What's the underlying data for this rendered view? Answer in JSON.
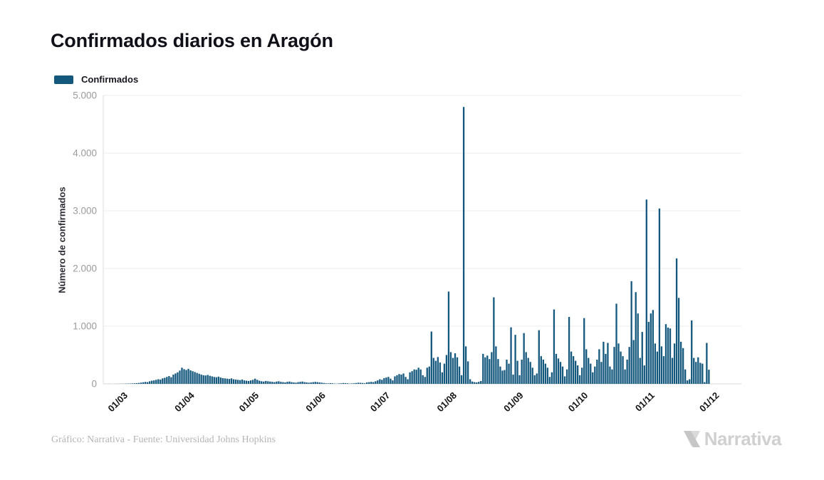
{
  "title": "Confirmados diarios en Aragón",
  "legend": {
    "label": "Confirmados",
    "swatch_color": "#14587E"
  },
  "footer": {
    "credit": "Gráfico: Narrativa - Fuente: Universidad Johns Hopkins",
    "brand": "Narrativa"
  },
  "chart_data": {
    "type": "bar",
    "title": "Confirmados diarios en Aragón",
    "series_name": "Confirmados",
    "xlabel": "",
    "ylabel": "Número de confirmados",
    "ylim": [
      0,
      5000
    ],
    "grid": true,
    "legend_position": "top-left",
    "bar_color": "#14587E",
    "y_ticks": [
      {
        "label": "0",
        "value": 0
      },
      {
        "label": "1.000",
        "value": 1000
      },
      {
        "label": "2.000",
        "value": 2000
      },
      {
        "label": "3.000",
        "value": 3000
      },
      {
        "label": "4.000",
        "value": 4000
      },
      {
        "label": "5.000",
        "value": 5000
      }
    ],
    "x_ticks": [
      {
        "label": "01/03",
        "day": 8
      },
      {
        "label": "01/04",
        "day": 39
      },
      {
        "label": "01/05",
        "day": 69
      },
      {
        "label": "01/06",
        "day": 100
      },
      {
        "label": "01/07",
        "day": 130
      },
      {
        "label": "01/08",
        "day": 161
      },
      {
        "label": "01/09",
        "day": 192
      },
      {
        "label": "01/10",
        "day": 222
      },
      {
        "label": "01/11",
        "day": 253
      },
      {
        "label": "01/12",
        "day": 283
      }
    ],
    "start_date": "2020-02-22",
    "values": [
      1,
      0,
      0,
      1,
      1,
      2,
      2,
      3,
      4,
      5,
      6,
      8,
      10,
      12,
      16,
      22,
      28,
      34,
      30,
      45,
      55,
      60,
      70,
      80,
      75,
      95,
      105,
      120,
      135,
      115,
      160,
      180,
      200,
      230,
      280,
      255,
      240,
      260,
      235,
      220,
      205,
      190,
      175,
      160,
      150,
      145,
      155,
      140,
      130,
      120,
      115,
      125,
      110,
      100,
      95,
      90,
      85,
      95,
      80,
      75,
      70,
      65,
      75,
      60,
      55,
      50,
      60,
      70,
      90,
      70,
      55,
      45,
      40,
      50,
      45,
      40,
      35,
      30,
      40,
      45,
      35,
      30,
      25,
      35,
      40,
      30,
      25,
      20,
      30,
      35,
      40,
      30,
      25,
      20,
      25,
      30,
      35,
      30,
      25,
      20,
      15,
      10,
      8,
      12,
      10,
      5,
      3,
      8,
      10,
      15,
      12,
      10,
      5,
      8,
      10,
      15,
      20,
      18,
      15,
      10,
      25,
      30,
      35,
      30,
      45,
      60,
      80,
      70,
      100,
      110,
      120,
      90,
      60,
      130,
      150,
      170,
      160,
      180,
      120,
      80,
      200,
      220,
      250,
      245,
      280,
      250,
      150,
      120,
      280,
      300,
      907,
      450,
      400,
      465,
      370,
      200,
      350,
      500,
      1600,
      550,
      450,
      530,
      460,
      300,
      150,
      4800,
      650,
      390,
      80,
      40,
      30,
      25,
      35,
      50,
      520,
      460,
      490,
      430,
      550,
      1500,
      650,
      430,
      300,
      230,
      240,
      420,
      350,
      980,
      160,
      850,
      400,
      150,
      420,
      880,
      550,
      450,
      380,
      280,
      150,
      180,
      930,
      480,
      420,
      350,
      280,
      120,
      200,
      1290,
      520,
      440,
      380,
      300,
      130,
      250,
      1160,
      560,
      480,
      400,
      320,
      150,
      280,
      1140,
      600,
      450,
      350,
      200,
      300,
      420,
      600,
      380,
      730,
      520,
      710,
      300,
      250,
      640,
      1390,
      700,
      560,
      480,
      250,
      420,
      640,
      1780,
      760,
      1590,
      1220,
      450,
      900,
      320,
      3195,
      1075,
      1220,
      1280,
      700,
      560,
      3040,
      650,
      480,
      1035,
      975,
      960,
      450,
      700,
      2175,
      1490,
      730,
      620,
      250,
      60,
      80,
      1100,
      450,
      380,
      460,
      365,
      350,
      30,
      710,
      245
    ]
  }
}
